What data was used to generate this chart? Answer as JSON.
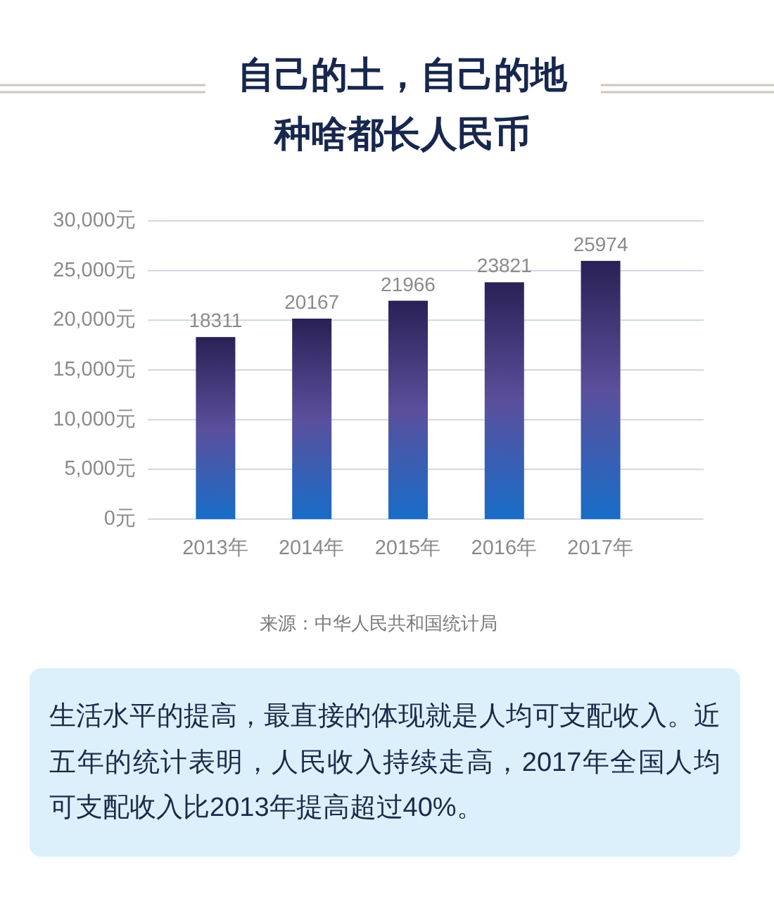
{
  "chart_data": {
    "type": "bar",
    "title": "自己的土，自己的地",
    "subtitle": "种啥都长人民币",
    "categories": [
      "2013年",
      "2014年",
      "2015年",
      "2016年",
      "2017年"
    ],
    "values": [
      18311,
      20167,
      21966,
      23821,
      25974
    ],
    "color": "#45378f",
    "ylim": [
      0,
      30000
    ],
    "yticks": [
      {
        "value": 0,
        "label": "0元"
      },
      {
        "value": 5000,
        "label": "5,000元"
      },
      {
        "value": 10000,
        "label": "10,000元"
      },
      {
        "value": 15000,
        "label": "15,000元"
      },
      {
        "value": 20000,
        "label": "20,000元"
      },
      {
        "value": 25000,
        "label": "25,000元"
      },
      {
        "value": 30000,
        "label": "30,000元"
      }
    ],
    "grid": "y",
    "data_labels": true,
    "annotations": [
      "来源：中华人民共和国统计局",
      "生活水平的提高，最直接的体现就是人均可支配收入。近五年的统计表明，人民收入持续走高，2017年全国人均可支配收入比2013年提高超过40%。"
    ]
  }
}
